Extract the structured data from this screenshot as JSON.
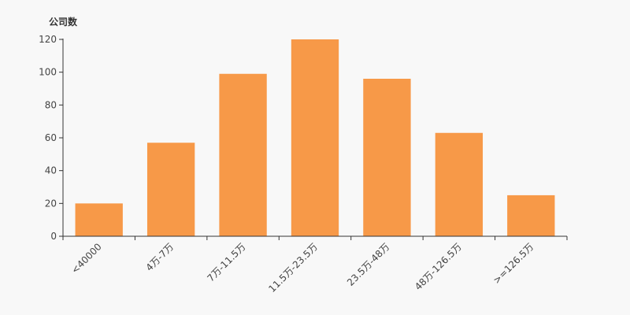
{
  "chart_data": {
    "type": "bar",
    "title": "",
    "xlabel": "",
    "ylabel": "公司数",
    "categories": [
      "<40000",
      "4万-7万",
      "7万-11.5万",
      "11.5万-23.5万",
      "23.5万-48万",
      "48万-126.5万",
      ">=126.5万"
    ],
    "values": [
      20,
      57,
      99,
      120,
      96,
      63,
      25
    ],
    "ylim": [
      0,
      120
    ],
    "yticks": [
      0,
      20,
      40,
      60,
      80,
      100,
      120
    ],
    "grid": false,
    "bar_color": "#f79948",
    "axis_color": "#333333"
  }
}
